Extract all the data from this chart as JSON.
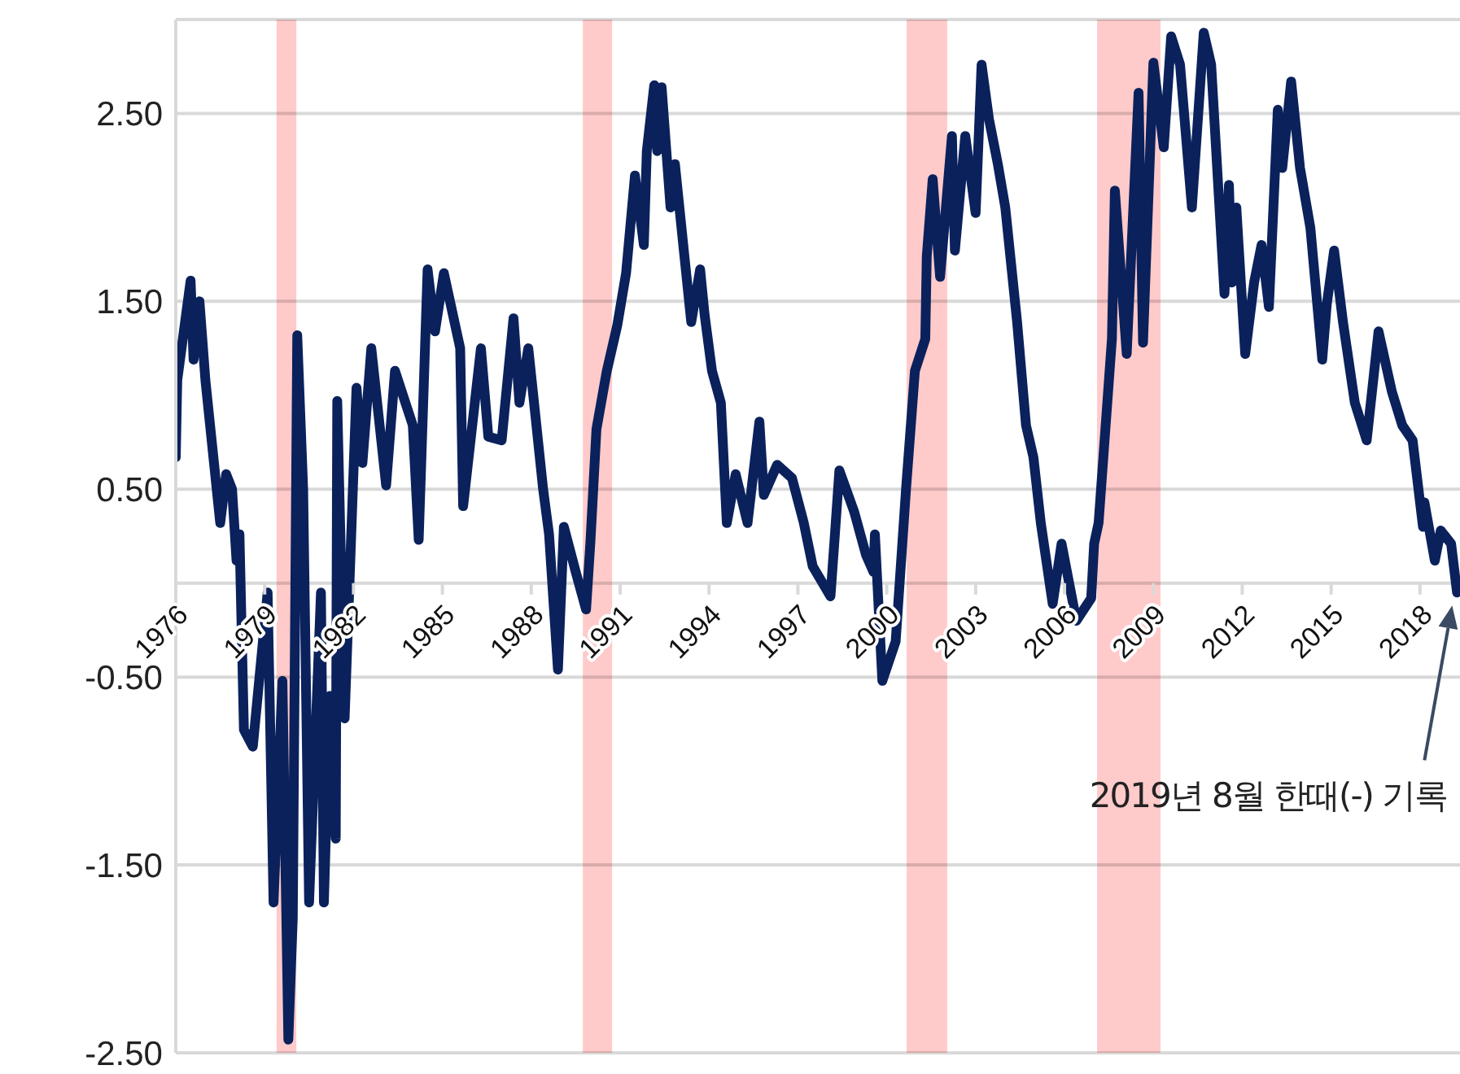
{
  "chart_data": {
    "type": "line",
    "x": [
      1976.0,
      1976.05,
      1976.5,
      1976.6,
      1976.8,
      1977.0,
      1977.5,
      1977.7,
      1977.9,
      1978.05,
      1978.15,
      1978.3,
      1978.6,
      1979.1,
      1979.3,
      1979.6,
      1979.8,
      1979.95,
      1980.1,
      1980.3,
      1980.5,
      1980.9,
      1981.0,
      1981.2,
      1981.4,
      1981.45,
      1981.7,
      1982.1,
      1982.3,
      1982.6,
      1983.1,
      1983.4,
      1984.0,
      1984.2,
      1984.5,
      1984.75,
      1985.05,
      1985.6,
      1985.7,
      1986.3,
      1986.55,
      1987.0,
      1987.4,
      1987.6,
      1987.9,
      1988.4,
      1988.6,
      1988.9,
      1989.1,
      1989.5,
      1989.85,
      1990.0,
      1990.2,
      1990.55,
      1990.9,
      1991.2,
      1991.5,
      1991.8,
      1991.9,
      1992.15,
      1992.25,
      1992.4,
      1992.7,
      1992.85,
      1993.15,
      1993.4,
      1993.7,
      1993.85,
      1994.1,
      1994.4,
      1994.6,
      1994.9,
      1995.3,
      1995.7,
      1995.85,
      1996.3,
      1996.8,
      1997.2,
      1997.5,
      1998.1,
      1998.25,
      1998.4,
      1998.9,
      1999.3,
      1999.55,
      1999.6,
      1999.85,
      2000.3,
      2000.65,
      2000.95,
      2001.3,
      2001.35,
      2001.55,
      2001.8,
      2002.2,
      2002.3,
      2002.65,
      2003.0,
      2003.2,
      2003.45,
      2003.75,
      2004.0,
      2004.4,
      2004.7,
      2004.95,
      2005.2,
      2005.6,
      2005.9,
      2006.4,
      2006.9,
      2007.0,
      2007.15,
      2007.6,
      2007.7,
      2008.1,
      2008.5,
      2008.65,
      2009.0,
      2009.35,
      2009.6,
      2009.9,
      2010.3,
      2010.7,
      2010.95,
      2011.4,
      2011.55,
      2011.65,
      2011.8,
      2012.1,
      2012.4,
      2012.65,
      2012.9,
      2013.2,
      2013.35,
      2013.65,
      2013.95,
      2014.3,
      2014.7,
      2014.85,
      2015.1,
      2015.4,
      2015.8,
      2016.2,
      2016.6,
      2017.05,
      2017.4,
      2017.75,
      2018.1,
      2018.15,
      2018.5,
      2018.7,
      2019.05,
      2019.25
    ],
    "values": [
      0.67,
      1.08,
      1.61,
      1.19,
      1.5,
      1.08,
      0.32,
      0.58,
      0.5,
      0.12,
      0.26,
      -0.78,
      -0.87,
      -0.05,
      -1.7,
      -0.52,
      -2.43,
      -1.78,
      1.32,
      0.5,
      -1.7,
      -0.05,
      -1.7,
      -0.6,
      -1.36,
      0.97,
      -0.72,
      1.04,
      0.64,
      1.25,
      0.52,
      1.13,
      0.84,
      0.23,
      1.67,
      1.34,
      1.65,
      1.25,
      0.41,
      1.25,
      0.78,
      0.76,
      1.41,
      0.96,
      1.25,
      0.5,
      0.26,
      -0.46,
      0.3,
      0.06,
      -0.14,
      0.23,
      0.82,
      1.13,
      1.37,
      1.65,
      2.17,
      1.8,
      2.3,
      2.65,
      2.3,
      2.64,
      2.0,
      2.23,
      1.77,
      1.39,
      1.67,
      1.43,
      1.13,
      0.96,
      0.32,
      0.58,
      0.32,
      0.86,
      0.47,
      0.63,
      0.56,
      0.32,
      0.09,
      -0.07,
      0.26,
      0.6,
      0.38,
      0.15,
      0.06,
      0.26,
      -0.52,
      -0.31,
      0.5,
      1.13,
      1.3,
      1.74,
      2.15,
      1.63,
      2.38,
      1.77,
      2.38,
      1.97,
      2.76,
      2.47,
      2.23,
      2.0,
      1.39,
      0.84,
      0.67,
      0.32,
      -0.11,
      0.21,
      -0.2,
      -0.08,
      0.21,
      0.32,
      1.3,
      2.09,
      1.22,
      2.61,
      1.28,
      2.77,
      2.32,
      2.91,
      2.76,
      2.0,
      2.93,
      2.76,
      1.54,
      2.12,
      1.6,
      2.0,
      1.22,
      1.6,
      1.8,
      1.47,
      2.52,
      2.21,
      2.67,
      2.21,
      1.89,
      1.19,
      1.48,
      1.77,
      1.39,
      0.96,
      0.76,
      1.34,
      1.02,
      0.84,
      0.76,
      0.3,
      0.43,
      0.12,
      0.28,
      0.21,
      -0.05
    ],
    "color": "#0a215c",
    "xlim": [
      1976,
      2019.35
    ],
    "xticks": [
      1976,
      1979,
      1982,
      1985,
      1988,
      1991,
      1994,
      1997,
      2000,
      2003,
      2006,
      2009,
      2012,
      2015,
      2018
    ],
    "ylim": [
      -2.5,
      3.0
    ],
    "yticks": [
      {
        "value": -2.5,
        "label": "-2.50"
      },
      {
        "value": -1.5,
        "label": "-1.50"
      },
      {
        "value": -0.5,
        "label": "-0.50"
      },
      {
        "value": 0,
        "label": null
      },
      {
        "value": 0.5,
        "label": "0.50"
      },
      {
        "value": 1.5,
        "label": "1.50"
      },
      {
        "value": 2.5,
        "label": "2.50"
      }
    ],
    "grid": "y",
    "bands": [
      {
        "axis": "x",
        "from": 1979.4,
        "to": 1980.07,
        "color": "#ffcaca"
      },
      {
        "axis": "x",
        "from": 1989.74,
        "to": 1990.73,
        "color": "#ffcaca"
      },
      {
        "axis": "x",
        "from": 2000.67,
        "to": 2002.04,
        "color": "#ffcaca"
      },
      {
        "axis": "x",
        "from": 2007.1,
        "to": 2009.24,
        "color": "#ffcaca"
      }
    ],
    "annotations": [
      "2019년 8월 한때(-) 기록"
    ]
  }
}
